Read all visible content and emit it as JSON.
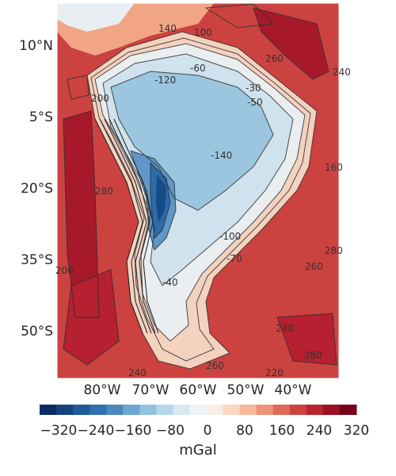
{
  "map": {
    "lat_labels": [
      "10°N",
      "5°S",
      "20°S",
      "35°S",
      "50°S"
    ],
    "lon_labels": [
      "80°W",
      "70°W",
      "60°W",
      "50°W",
      "40°W"
    ],
    "contour_labels": [
      "-120",
      "-140",
      "-100",
      "-70",
      "-40",
      "-60",
      "-50",
      "-30",
      "100",
      "140",
      "260",
      "200",
      "260",
      "240",
      "280",
      "220",
      "240",
      "260",
      "200",
      "280",
      "160",
      "240",
      "280"
    ]
  },
  "colorbar": {
    "title": "mGal",
    "ticks": [
      "−320",
      "−240",
      "−160",
      "−80",
      "0",
      "80",
      "160",
      "240",
      "320"
    ],
    "colors": [
      "#0b2d63",
      "#16427d",
      "#1f5a99",
      "#2e70b0",
      "#4a89c0",
      "#6da6d0",
      "#93c2df",
      "#b8d8ea",
      "#d8e8f2",
      "#eef3f6",
      "#f9ede7",
      "#fcd7c3",
      "#f7b79b",
      "#ee9376",
      "#de6a55",
      "#cc4240",
      "#b8232e",
      "#9c0f24",
      "#7a0019"
    ]
  }
}
